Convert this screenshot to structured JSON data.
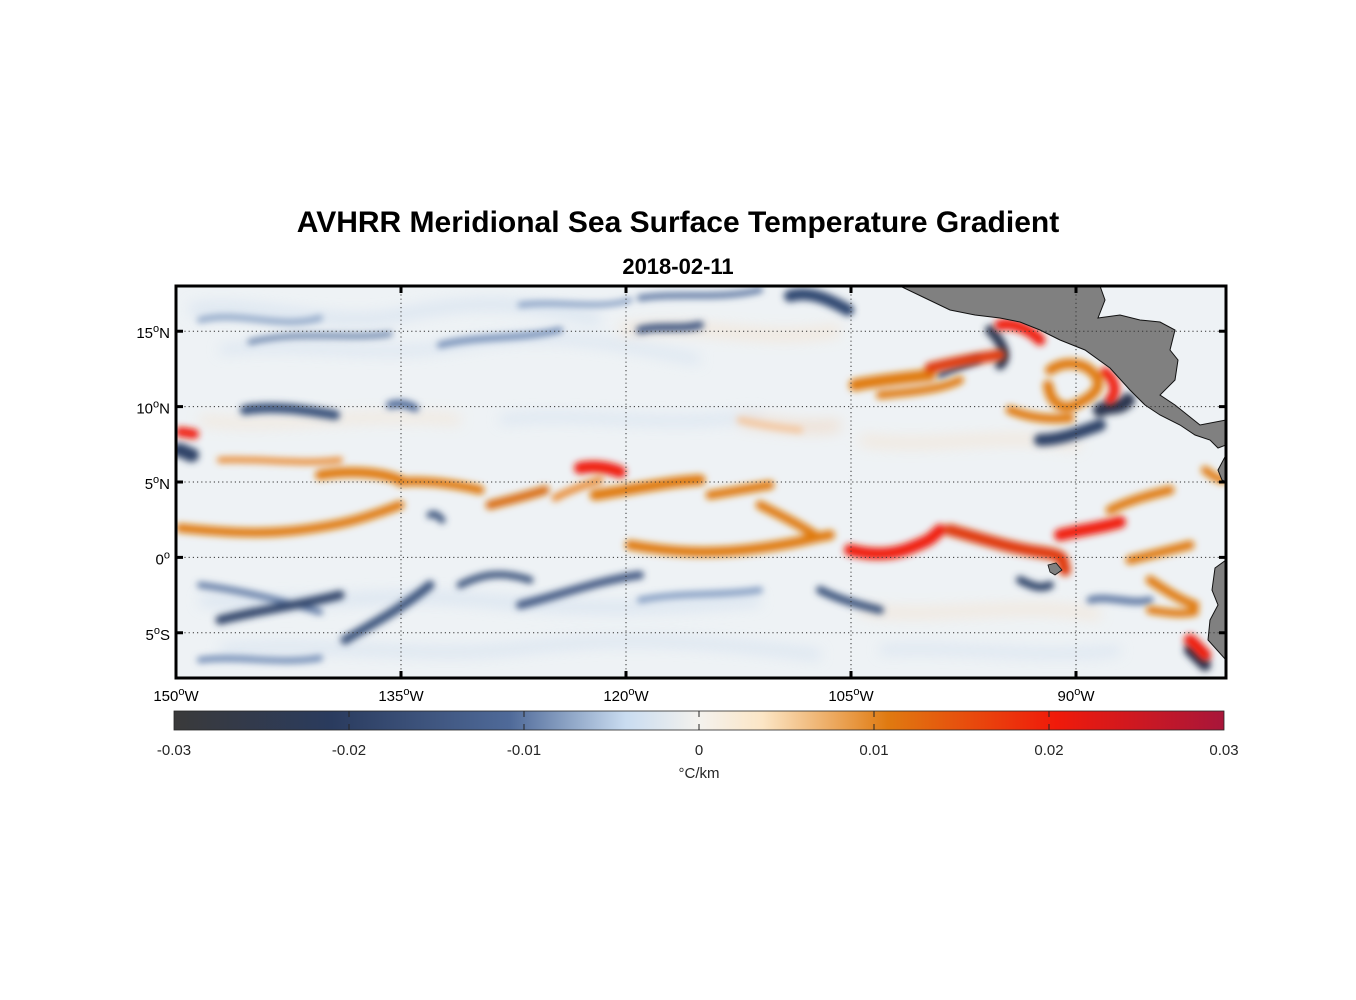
{
  "title": "AVHRR Meridional Sea Surface Temperature Gradient",
  "date": "2018-02-11",
  "map": {
    "lon_range": [
      -150,
      -80
    ],
    "lat_range": [
      -8,
      18
    ],
    "lon_ticks": [
      {
        "value": -150,
        "num": "150",
        "hem": "W"
      },
      {
        "value": -135,
        "num": "135",
        "hem": "W"
      },
      {
        "value": -120,
        "num": "120",
        "hem": "W"
      },
      {
        "value": -105,
        "num": "105",
        "hem": "W"
      },
      {
        "value": -90,
        "num": "90",
        "hem": "W"
      }
    ],
    "lat_ticks": [
      {
        "value": 15,
        "num": "15",
        "hem": "N"
      },
      {
        "value": 10,
        "num": "10",
        "hem": "N"
      },
      {
        "value": 5,
        "num": "5",
        "hem": "N"
      },
      {
        "value": 0,
        "num": "0",
        "hem": ""
      },
      {
        "value": -5,
        "num": "5",
        "hem": "S"
      }
    ],
    "degree_symbol": "o",
    "grid": "dotted",
    "land_color": "#808080"
  },
  "colorbar": {
    "range": [
      -0.03,
      0.03
    ],
    "tick_values": [
      -0.03,
      -0.02,
      -0.01,
      0,
      0.01,
      0.02,
      0.03
    ],
    "tick_labels": [
      "-0.03",
      "-0.02",
      "-0.01",
      "0",
      "0.01",
      "0.02",
      "0.03"
    ],
    "unit": "°C/km",
    "colors": [
      "#3a3a3a",
      "#2a3b5e",
      "#4f6a99",
      "#c9dcf0",
      "#f4f2ee",
      "#fce6c6",
      "#e07a10",
      "#f01a0a",
      "#a8163a"
    ]
  }
}
